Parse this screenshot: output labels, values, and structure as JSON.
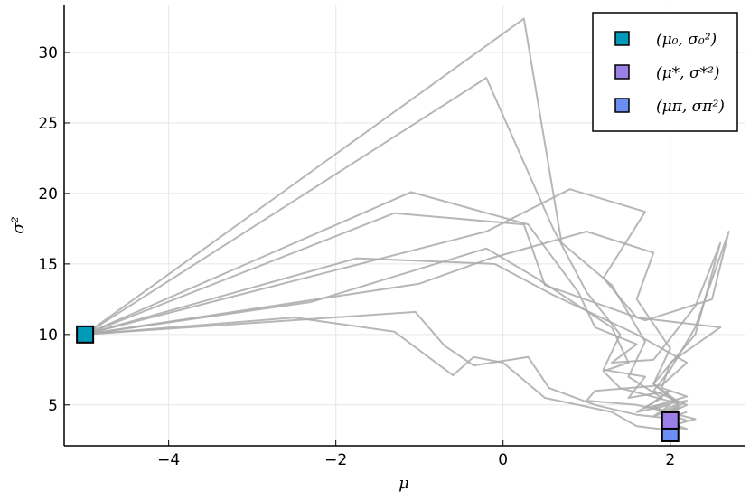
{
  "chart_data": {
    "type": "line",
    "xlabel": "μ",
    "ylabel": "σ²",
    "xlim": [
      -5.25,
      2.9
    ],
    "ylim": [
      2.1,
      33.4
    ],
    "xticks": [
      -4,
      -2,
      0,
      2
    ],
    "yticks": [
      5,
      10,
      15,
      20,
      25,
      30
    ],
    "xtick_labels": [
      "−4",
      "−2",
      "0",
      "2"
    ],
    "ytick_labels": [
      "5",
      "10",
      "15",
      "20",
      "25",
      "30"
    ],
    "grid": true,
    "legend_position": "top-right",
    "legend": [
      {
        "label": "(μ₀, σ₀²)",
        "color": "#0099b8"
      },
      {
        "label": "(μ*, σ*²)",
        "color": "#9b7fe6"
      },
      {
        "label": "(μπ, σπ²)",
        "color": "#6b8ef5"
      }
    ],
    "points": {
      "start": {
        "x": -5.0,
        "y": 10.0,
        "color": "#0099b8"
      },
      "optimum": {
        "x": 2.0,
        "y": 3.9,
        "color": "#9b7fe6"
      },
      "posterior": {
        "x": 2.0,
        "y": 3.0,
        "color": "#6b8ef5"
      }
    },
    "trajectory_color": "#aaaaaa",
    "series": [
      {
        "x": [
          -5.0,
          0.25,
          0.7,
          1.3,
          1.7,
          1.5,
          1.9,
          1.6,
          2.0,
          1.8,
          2.1,
          1.9,
          2.2
        ],
        "y": [
          10.0,
          32.4,
          16.5,
          13.5,
          9.5,
          7.0,
          5.5,
          4.5,
          5.0,
          4.2,
          4.8,
          3.9,
          4.5
        ]
      },
      {
        "x": [
          -5.0,
          -0.2,
          0.6,
          1.0,
          1.4,
          1.2,
          1.7,
          1.5,
          2.0,
          1.7,
          2.2,
          1.9,
          2.1
        ],
        "y": [
          10.0,
          28.2,
          17.5,
          13.0,
          10.0,
          7.5,
          7.0,
          5.5,
          6.0,
          4.8,
          5.3,
          4.1,
          4.6
        ]
      },
      {
        "x": [
          -5.0,
          -1.1,
          0.3,
          0.9,
          1.1,
          1.6,
          1.3,
          1.8,
          2.3,
          2.6,
          2.3,
          1.8,
          2.1,
          1.9
        ],
        "y": [
          10.0,
          20.1,
          17.8,
          13.0,
          10.5,
          9.3,
          8.0,
          8.2,
          12.0,
          16.5,
          10.0,
          6.5,
          5.0,
          4.3
        ]
      },
      {
        "x": [
          -5.0,
          -1.3,
          0.25,
          0.5,
          1.7,
          2.5,
          2.7,
          2.3,
          2.0,
          1.8,
          2.2,
          1.9
        ],
        "y": [
          10.0,
          18.6,
          17.8,
          13.5,
          11.0,
          12.5,
          17.3,
          10.5,
          7.5,
          6.0,
          5.0,
          4.2
        ]
      },
      {
        "x": [
          -5.0,
          -0.2,
          0.8,
          1.7,
          1.2,
          1.6,
          2.6,
          2.0,
          1.9,
          2.2,
          1.8,
          2.0
        ],
        "y": [
          10.0,
          17.3,
          20.3,
          18.7,
          14.0,
          11.2,
          10.5,
          8.0,
          6.2,
          5.6,
          4.9,
          4.4
        ]
      },
      {
        "x": [
          -5.0,
          -1.75,
          -0.1,
          0.6,
          1.6,
          2.2,
          1.9,
          1.1,
          1.0,
          1.6,
          1.9,
          2.3,
          2.0
        ],
        "y": [
          10.0,
          15.4,
          15.0,
          12.8,
          10.0,
          8.0,
          6.4,
          6.0,
          5.3,
          5.0,
          4.6,
          4.0,
          3.5
        ]
      },
      {
        "x": [
          -5.0,
          -2.3,
          -0.2,
          0.4,
          1.3,
          1.5,
          1.2,
          1.4,
          2.1,
          1.9,
          2.2
        ],
        "y": [
          10.0,
          12.3,
          16.1,
          14.0,
          10.5,
          8.0,
          7.4,
          6.2,
          5.1,
          4.5,
          3.9
        ]
      },
      {
        "x": [
          -5.0,
          -1.0,
          -0.15,
          1.0,
          1.8,
          1.6,
          2.0,
          1.8,
          2.1
        ],
        "y": [
          10.0,
          13.6,
          15.4,
          17.3,
          15.8,
          12.5,
          9.0,
          6.5,
          5.2
        ]
      },
      {
        "x": [
          -5.0,
          -1.05,
          -0.7,
          -0.35,
          0.3,
          0.55,
          1.1,
          1.6,
          1.9,
          2.0,
          2.2,
          1.9
        ],
        "y": [
          10.0,
          11.6,
          9.2,
          7.8,
          8.4,
          6.2,
          5.0,
          4.3,
          4.1,
          3.7,
          3.3,
          3.5
        ]
      },
      {
        "x": [
          -5.0,
          -2.5,
          -1.3,
          -0.6,
          -0.35,
          0.0,
          0.5,
          1.3,
          1.6,
          2.0
        ],
        "y": [
          10.0,
          11.2,
          10.2,
          7.1,
          8.4,
          8.0,
          5.5,
          4.5,
          3.5,
          3.2
        ]
      }
    ]
  }
}
